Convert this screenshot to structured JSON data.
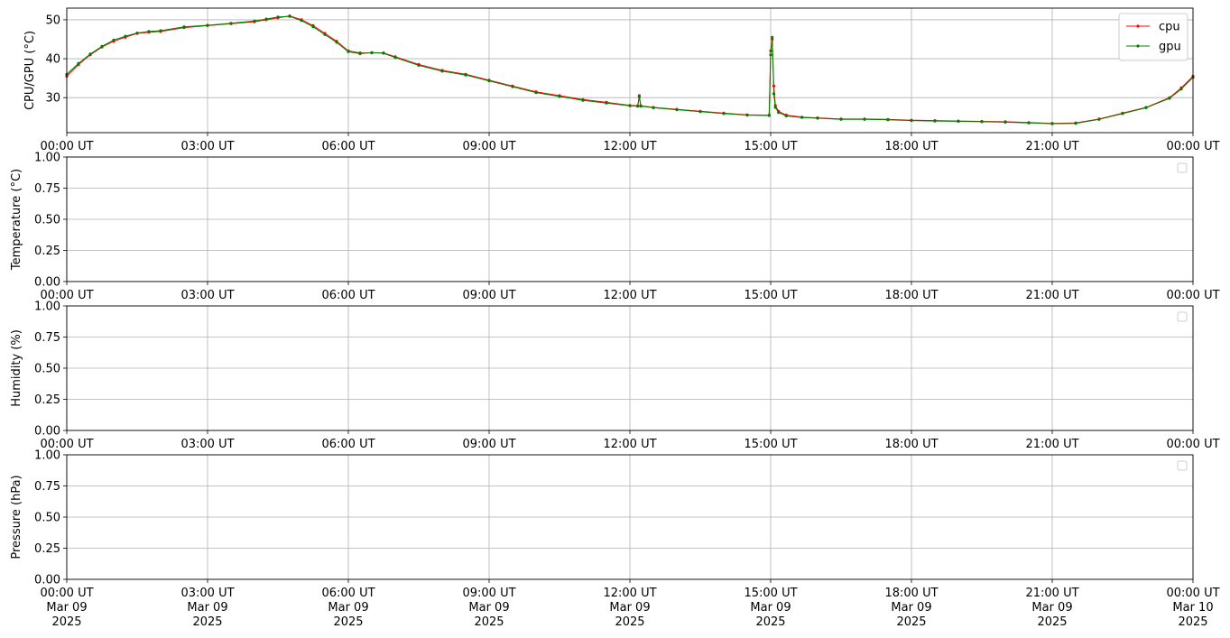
{
  "chart_data": [
    {
      "type": "line",
      "ylabel": "CPU/GPU (°C)",
      "xlim": [
        "2025-03-09T00:00Z",
        "2025-03-10T00:00Z"
      ],
      "x_ticks": [
        "00:00 UT",
        "03:00 UT",
        "06:00 UT",
        "09:00 UT",
        "12:00 UT",
        "15:00 UT",
        "18:00 UT",
        "21:00 UT",
        "00:00 UT"
      ],
      "ylim": [
        21,
        53
      ],
      "y_ticks": [
        "30",
        "40",
        "50"
      ],
      "grid": true,
      "legend": "top-right",
      "series": [
        {
          "name": "cpu",
          "color": "#ff0000",
          "x": [
            "00:00",
            "00:15",
            "00:30",
            "00:45",
            "01:00",
            "01:15",
            "01:30",
            "01:45",
            "02:00",
            "02:30",
            "03:00",
            "03:30",
            "04:00",
            "04:15",
            "04:30",
            "04:45",
            "05:00",
            "05:15",
            "05:30",
            "05:45",
            "06:00",
            "06:15",
            "06:30",
            "06:45",
            "07:00",
            "07:30",
            "08:00",
            "08:30",
            "09:00",
            "09:30",
            "10:00",
            "10:30",
            "11:00",
            "11:30",
            "12:00",
            "12:10",
            "12:12",
            "12:14",
            "12:30",
            "13:00",
            "13:30",
            "14:00",
            "14:30",
            "14:58",
            "15:00",
            "15:02",
            "15:04",
            "15:06",
            "15:10",
            "15:20",
            "15:40",
            "16:00",
            "16:30",
            "17:00",
            "17:30",
            "18:00",
            "18:30",
            "19:00",
            "19:30",
            "20:00",
            "20:30",
            "21:00",
            "21:30",
            "22:00",
            "22:30",
            "23:00",
            "23:30",
            "23:45",
            "24:00"
          ],
          "y": [
            35.5,
            38.5,
            41,
            43,
            44.5,
            45.5,
            46.5,
            46.8,
            47,
            48,
            48.5,
            49,
            49.5,
            50,
            50.5,
            51,
            50,
            48.5,
            46.5,
            44.5,
            42,
            41.5,
            41.5,
            41.5,
            40.5,
            38.5,
            37,
            36,
            34.5,
            33,
            31.5,
            30.5,
            29.5,
            28.8,
            28,
            27.9,
            30.5,
            27.9,
            27.5,
            27,
            26.5,
            26,
            25.6,
            25.5,
            42,
            45,
            33,
            28,
            26.5,
            25.5,
            25,
            24.8,
            24.5,
            24.5,
            24.4,
            24.2,
            24.1,
            24,
            23.9,
            23.8,
            23.6,
            23.4,
            23.5,
            24.5,
            26,
            27.5,
            30,
            32.5,
            35.5
          ]
        },
        {
          "name": "gpu",
          "color": "#008000",
          "x": [
            "00:00",
            "00:15",
            "00:30",
            "00:45",
            "01:00",
            "01:15",
            "01:30",
            "01:45",
            "02:00",
            "02:30",
            "03:00",
            "03:30",
            "04:00",
            "04:15",
            "04:30",
            "04:45",
            "05:00",
            "05:15",
            "05:30",
            "05:45",
            "06:00",
            "06:15",
            "06:30",
            "06:45",
            "07:00",
            "07:30",
            "08:00",
            "08:30",
            "09:00",
            "09:30",
            "10:00",
            "10:30",
            "11:00",
            "11:30",
            "12:00",
            "12:10",
            "12:12",
            "12:14",
            "12:30",
            "13:00",
            "13:30",
            "14:00",
            "14:30",
            "14:58",
            "15:00",
            "15:02",
            "15:04",
            "15:06",
            "15:10",
            "15:20",
            "15:40",
            "16:00",
            "16:30",
            "17:00",
            "17:30",
            "18:00",
            "18:30",
            "19:00",
            "19:30",
            "20:00",
            "20:30",
            "21:00",
            "21:30",
            "22:00",
            "22:30",
            "23:00",
            "23:30",
            "23:45",
            "24:00"
          ],
          "y": [
            36,
            38.8,
            41.2,
            43.2,
            44.8,
            45.8,
            46.6,
            47,
            47.2,
            48.2,
            48.6,
            49.1,
            49.7,
            50.2,
            50.7,
            50.9,
            49.8,
            48.2,
            46.2,
            44.2,
            41.8,
            41.3,
            41.6,
            41.4,
            40.3,
            38.3,
            36.8,
            35.8,
            34.3,
            32.8,
            31.3,
            30.3,
            29.3,
            28.6,
            27.9,
            27.8,
            30.2,
            27.8,
            27.4,
            26.9,
            26.4,
            25.9,
            25.5,
            25.4,
            41,
            45.5,
            31,
            27.5,
            26.2,
            25.3,
            24.9,
            24.7,
            24.4,
            24.4,
            24.3,
            24.1,
            24,
            23.9,
            23.8,
            23.7,
            23.5,
            23.3,
            23.4,
            24.4,
            25.9,
            27.4,
            29.8,
            32.2,
            35.2
          ]
        }
      ]
    },
    {
      "type": "line",
      "ylabel": "Temperature (°C)",
      "xlim": [
        "2025-03-09T00:00Z",
        "2025-03-10T00:00Z"
      ],
      "x_ticks": [
        "00:00 UT",
        "03:00 UT",
        "06:00 UT",
        "09:00 UT",
        "12:00 UT",
        "15:00 UT",
        "18:00 UT",
        "21:00 UT",
        "00:00 UT"
      ],
      "ylim": [
        0,
        1
      ],
      "y_ticks": [
        "0.00",
        "0.25",
        "0.50",
        "0.75",
        "1.00"
      ],
      "grid": true,
      "legend": "top-right (empty)",
      "series": []
    },
    {
      "type": "line",
      "ylabel": "Humidity (%)",
      "xlim": [
        "2025-03-09T00:00Z",
        "2025-03-10T00:00Z"
      ],
      "x_ticks": [
        "00:00 UT",
        "03:00 UT",
        "06:00 UT",
        "09:00 UT",
        "12:00 UT",
        "15:00 UT",
        "18:00 UT",
        "21:00 UT",
        "00:00 UT"
      ],
      "ylim": [
        0,
        1
      ],
      "y_ticks": [
        "0.00",
        "0.25",
        "0.50",
        "0.75",
        "1.00"
      ],
      "grid": true,
      "legend": "top-right (empty)",
      "series": []
    },
    {
      "type": "line",
      "ylabel": "Pressure (hPa)",
      "xlim": [
        "2025-03-09T00:00Z",
        "2025-03-10T00:00Z"
      ],
      "x_ticks": [
        "00:00 UT",
        "03:00 UT",
        "06:00 UT",
        "09:00 UT",
        "12:00 UT",
        "15:00 UT",
        "18:00 UT",
        "21:00 UT",
        "00:00 UT"
      ],
      "x_ticks_line2": [
        "Mar 09",
        "Mar 09",
        "Mar 09",
        "Mar 09",
        "Mar 09",
        "Mar 09",
        "Mar 09",
        "Mar 09",
        "Mar 10"
      ],
      "x_ticks_line3": [
        "2025",
        "2025",
        "2025",
        "2025",
        "2025",
        "2025",
        "2025",
        "2025",
        "2025"
      ],
      "ylim": [
        0,
        1
      ],
      "y_ticks": [
        "0.00",
        "0.25",
        "0.50",
        "0.75",
        "1.00"
      ],
      "grid": true,
      "legend": "top-right (empty)",
      "series": []
    }
  ]
}
